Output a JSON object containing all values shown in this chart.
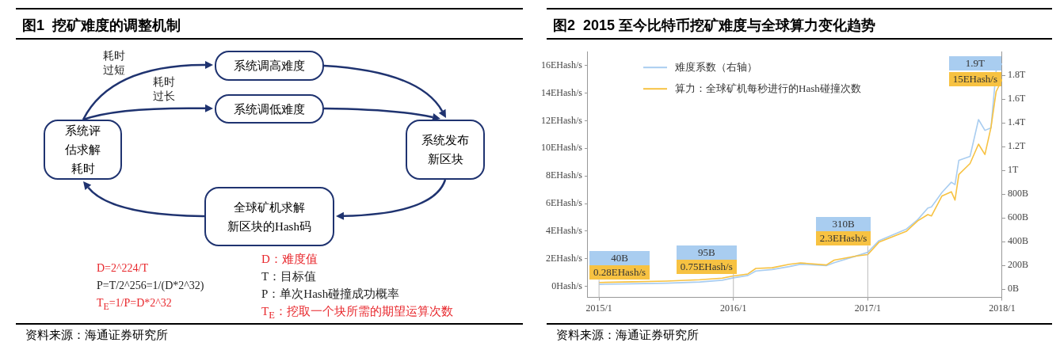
{
  "chart_data": [
    {
      "type": "other",
      "title": "图1  挖矿难度的调整机制",
      "annotations": [
        "系统调高难度",
        "系统调低难度",
        "系统评估求解耗时",
        "系统发布新区块",
        "全球矿机求解新区块的Hash码",
        "耗时过短",
        "耗时过长",
        "D=2^224/T",
        "P=T/2^256=1/(D*2^32)",
        "T$_{E}$=1/P=D*2^32",
        "D：难度值",
        "T：目标值",
        "P：单次Hash碰撞成功概率",
        "T$_{E}$：挖取一个块所需的期望运算次数",
        "资料来源：海通证券研究所"
      ]
    },
    {
      "type": "line",
      "title": "图2  2015 至今比特币挖矿难度与全球算力变化趋势",
      "x": [
        "2015-01-01",
        "2015-04-01",
        "2015-07-01",
        "2015-10-01",
        "2015-12-01",
        "2016-01-01",
        "2016-02-10",
        "2016-03-01",
        "2016-04-15",
        "2016-06-01",
        "2016-07-01",
        "2016-09-10",
        "2016-10-01",
        "2016-12-01",
        "2017-01-01",
        "2017-02-01",
        "2017-04-15",
        "2017-05-15",
        "2017-06-12",
        "2017-06-22",
        "2017-07-20",
        "2017-08-15",
        "2017-08-25",
        "2017-09-05",
        "2017-10-05",
        "2017-10-28",
        "2017-11-15",
        "2017-12-01",
        "2017-12-15",
        "2018-01-01"
      ],
      "xlim": [
        "2014-12-01",
        "2018-01-01"
      ],
      "xticks": [
        {
          "value": "2015-01",
          "label": "2015/1"
        },
        {
          "value": "2016-01",
          "label": "2016/1"
        },
        {
          "value": "2017-01",
          "label": "2017/1"
        },
        {
          "value": "2018-01",
          "label": "2018/1"
        }
      ],
      "ylim": [
        -0.8,
        17
      ],
      "yticks": [
        {
          "value": 0,
          "label": "0Hash/s"
        },
        {
          "value": 2,
          "label": "2EHash/s"
        },
        {
          "value": 4,
          "label": "4EHash/s"
        },
        {
          "value": 6,
          "label": "6EHash/s"
        },
        {
          "value": 8,
          "label": "8EHash/s"
        },
        {
          "value": 10,
          "label": "10EHash/s"
        },
        {
          "value": 12,
          "label": "12EHash/s"
        },
        {
          "value": 14,
          "label": "14EHash/s"
        },
        {
          "value": 16,
          "label": "16EHash/s"
        }
      ],
      "y2lim": [
        -70000000000.0,
        2000000000000.0
      ],
      "y2ticks": [
        {
          "value": 0,
          "label": "0B"
        },
        {
          "value": 200000000000.0,
          "label": "200B"
        },
        {
          "value": 400000000000.0,
          "label": "400B"
        },
        {
          "value": 600000000000.0,
          "label": "600B"
        },
        {
          "value": 800000000000.0,
          "label": "800B"
        },
        {
          "value": 1000000000000.0,
          "label": "1T"
        },
        {
          "value": 1200000000000.0,
          "label": "1.2T"
        },
        {
          "value": 1400000000000.0,
          "label": "1.4T"
        },
        {
          "value": 1600000000000.0,
          "label": "1.6T"
        },
        {
          "value": 1800000000000.0,
          "label": "1.8T"
        }
      ],
      "series": [
        {
          "name": "难度系数（右轴）",
          "color": "#a9cdf0",
          "axis": "y2",
          "values": [
            40000000000.0,
            45000000000.0,
            50000000000.0,
            60000000000.0,
            75000000000.0,
            95000000000.0,
            115000000000.0,
            152000000000.0,
            165000000000.0,
            190000000000.0,
            210000000000.0,
            197000000000.0,
            222000000000.0,
            280000000000.0,
            310000000000.0,
            408000000000.0,
            506000000000.0,
            585000000000.0,
            683000000000.0,
            692000000000.0,
            814000000000.0,
            900000000000.0,
            880000000000.0,
            1085000000000.0,
            1118000000000.0,
            1428000000000.0,
            1337000000000.0,
            1358000000000.0,
            1839000000000.0,
            1900000000000.0
          ],
          "value_labels": [
            "40B",
            null,
            null,
            null,
            null,
            "95B",
            null,
            null,
            null,
            null,
            null,
            null,
            null,
            null,
            "310B",
            null,
            null,
            null,
            null,
            null,
            null,
            null,
            null,
            null,
            null,
            null,
            null,
            null,
            null,
            "1.9T"
          ]
        },
        {
          "name": "算力：全球矿机每秒进行的Hash碰撞次数",
          "color": "#f7c242",
          "values": [
            0.28,
            0.33,
            0.38,
            0.48,
            0.6,
            0.75,
            0.9,
            1.3,
            1.35,
            1.6,
            1.7,
            1.55,
            1.9,
            2.2,
            2.3,
            3.2,
            4.0,
            4.75,
            5.2,
            5.1,
            6.55,
            6.85,
            6.25,
            8.1,
            8.9,
            10.3,
            9.55,
            11.5,
            14.1,
            15
          ],
          "value_labels": [
            "0.28EHash/s",
            null,
            null,
            null,
            null,
            "0.75EHash/s",
            null,
            null,
            null,
            null,
            null,
            null,
            null,
            null,
            "2.3EHash/s",
            null,
            null,
            null,
            null,
            null,
            null,
            null,
            null,
            null,
            null,
            null,
            null,
            null,
            null,
            "15EHash/s"
          ]
        }
      ],
      "legend": "top left",
      "annotations": [
        "资料来源：海通证券研究所"
      ]
    }
  ]
}
